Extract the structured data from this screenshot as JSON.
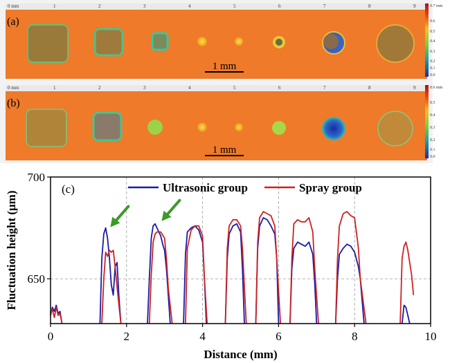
{
  "panel_a": {
    "label": "(a)",
    "scale_bar_label": "1 mm",
    "ruler_labels": [
      "0 mm",
      "1",
      "2",
      "3",
      "4",
      "5",
      "6",
      "7",
      "8",
      "9"
    ],
    "colorbar_labels": [
      "0.7 mm",
      "0.6",
      "0.5",
      "0.4",
      "0.3",
      "0.2",
      "0.1",
      "0.0"
    ]
  },
  "panel_b": {
    "label": "(b)",
    "scale_bar_label": "1 mm",
    "ruler_labels": [
      "0 mm",
      "1",
      "2",
      "3",
      "4",
      "5",
      "6",
      "7",
      "8",
      "9"
    ],
    "colorbar_labels": [
      "0.6 mm",
      "0.5",
      "0.4",
      "0.3",
      "0.2",
      "0.1",
      "0.0"
    ]
  },
  "chart_data": {
    "type": "line",
    "panel_label": "(c)",
    "xlabel": "Distance (mm)",
    "ylabel": "Fluctuation height (μm)",
    "xlim": [
      0,
      10
    ],
    "ylim": [
      628,
      700
    ],
    "xticks": [
      0,
      2,
      4,
      6,
      8,
      10
    ],
    "yticks": [
      650,
      700
    ],
    "grid": "dashed",
    "legend_position": "top",
    "series": [
      {
        "name": "Ultrasonic group",
        "color": "#1a1aa6",
        "segments": [
          [
            [
              0.0,
              632
            ],
            [
              0.05,
              636
            ],
            [
              0.1,
              634
            ],
            [
              0.15,
              637
            ],
            [
              0.2,
              633
            ],
            [
              0.25,
              634
            ],
            [
              0.3,
              628
            ]
          ],
          [
            [
              1.3,
              628
            ],
            [
              1.35,
              660
            ],
            [
              1.4,
              672
            ],
            [
              1.45,
              675
            ],
            [
              1.5,
              670
            ],
            [
              1.55,
              660
            ],
            [
              1.6,
              647
            ],
            [
              1.65,
              642
            ],
            [
              1.7,
              656
            ],
            [
              1.75,
              658
            ],
            [
              1.8,
              641
            ],
            [
              1.85,
              628
            ]
          ],
          [
            [
              2.55,
              628
            ],
            [
              2.6,
              650
            ],
            [
              2.65,
              670
            ],
            [
              2.7,
              676
            ],
            [
              2.75,
              677
            ],
            [
              2.8,
              675
            ],
            [
              2.85,
              673
            ],
            [
              2.9,
              671
            ],
            [
              2.95,
              667
            ],
            [
              3.0,
              664
            ],
            [
              3.05,
              655
            ],
            [
              3.15,
              628
            ]
          ],
          [
            [
              3.5,
              628
            ],
            [
              3.55,
              662
            ],
            [
              3.6,
              673
            ],
            [
              3.7,
              675
            ],
            [
              3.8,
              676
            ],
            [
              3.9,
              674
            ],
            [
              4.0,
              668
            ],
            [
              4.05,
              650
            ],
            [
              4.1,
              628
            ]
          ],
          [
            [
              4.6,
              628
            ],
            [
              4.65,
              660
            ],
            [
              4.7,
              672
            ],
            [
              4.8,
              676
            ],
            [
              4.9,
              677
            ],
            [
              5.0,
              673
            ],
            [
              5.05,
              655
            ],
            [
              5.1,
              628
            ]
          ],
          [
            [
              5.4,
              628
            ],
            [
              5.45,
              665
            ],
            [
              5.5,
              676
            ],
            [
              5.6,
              680
            ],
            [
              5.7,
              679
            ],
            [
              5.8,
              676
            ],
            [
              5.9,
              672
            ],
            [
              5.95,
              660
            ],
            [
              6.0,
              628
            ]
          ],
          [
            [
              6.3,
              628
            ],
            [
              6.35,
              655
            ],
            [
              6.4,
              665
            ],
            [
              6.5,
              668
            ],
            [
              6.6,
              667
            ],
            [
              6.7,
              666
            ],
            [
              6.8,
              668
            ],
            [
              6.9,
              662
            ],
            [
              6.95,
              648
            ],
            [
              7.0,
              628
            ]
          ],
          [
            [
              7.5,
              628
            ],
            [
              7.55,
              650
            ],
            [
              7.6,
              662
            ],
            [
              7.7,
              665
            ],
            [
              7.8,
              667
            ],
            [
              7.9,
              666
            ],
            [
              8.0,
              663
            ],
            [
              8.1,
              656
            ],
            [
              8.15,
              650
            ],
            [
              8.25,
              628
            ]
          ],
          [
            [
              9.25,
              628
            ],
            [
              9.3,
              637
            ],
            [
              9.35,
              636
            ],
            [
              9.4,
              632
            ],
            [
              9.45,
              628
            ]
          ]
        ]
      },
      {
        "name": "Spray group",
        "color": "#cc2222",
        "segments": [
          [
            [
              0.0,
              633
            ],
            [
              0.05,
              635
            ],
            [
              0.1,
              631
            ],
            [
              0.15,
              636
            ],
            [
              0.2,
              632
            ],
            [
              0.25,
              633
            ],
            [
              0.3,
              628
            ]
          ],
          [
            [
              1.35,
              628
            ],
            [
              1.4,
              650
            ],
            [
              1.45,
              663
            ],
            [
              1.5,
              661
            ],
            [
              1.55,
              664
            ],
            [
              1.6,
              663
            ],
            [
              1.65,
              664
            ],
            [
              1.7,
              656
            ],
            [
              1.75,
              646
            ],
            [
              1.85,
              628
            ]
          ],
          [
            [
              2.6,
              628
            ],
            [
              2.65,
              652
            ],
            [
              2.7,
              668
            ],
            [
              2.75,
              672
            ],
            [
              2.8,
              673
            ],
            [
              2.9,
              673
            ],
            [
              3.0,
              670
            ],
            [
              3.05,
              660
            ],
            [
              3.1,
              645
            ],
            [
              3.2,
              628
            ]
          ],
          [
            [
              3.55,
              628
            ],
            [
              3.6,
              665
            ],
            [
              3.7,
              674
            ],
            [
              3.8,
              676
            ],
            [
              3.9,
              676
            ],
            [
              4.0,
              671
            ],
            [
              4.05,
              650
            ],
            [
              4.12,
              628
            ]
          ],
          [
            [
              4.6,
              628
            ],
            [
              4.65,
              665
            ],
            [
              4.7,
              676
            ],
            [
              4.8,
              679
            ],
            [
              4.9,
              679
            ],
            [
              5.0,
              676
            ],
            [
              5.05,
              665
            ],
            [
              5.15,
              628
            ]
          ],
          [
            [
              5.4,
              628
            ],
            [
              5.45,
              668
            ],
            [
              5.5,
              680
            ],
            [
              5.6,
              683
            ],
            [
              5.7,
              682
            ],
            [
              5.8,
              681
            ],
            [
              5.9,
              676
            ],
            [
              5.95,
              660
            ],
            [
              6.05,
              628
            ]
          ],
          [
            [
              6.3,
              628
            ],
            [
              6.35,
              660
            ],
            [
              6.4,
              677
            ],
            [
              6.5,
              679
            ],
            [
              6.6,
              678
            ],
            [
              6.7,
              678
            ],
            [
              6.8,
              680
            ],
            [
              6.9,
              673
            ],
            [
              6.95,
              655
            ],
            [
              7.05,
              628
            ]
          ],
          [
            [
              7.5,
              628
            ],
            [
              7.55,
              660
            ],
            [
              7.6,
              676
            ],
            [
              7.7,
              682
            ],
            [
              7.8,
              683
            ],
            [
              7.9,
              681
            ],
            [
              8.0,
              680
            ],
            [
              8.1,
              665
            ],
            [
              8.15,
              650
            ],
            [
              8.3,
              628
            ]
          ],
          [
            [
              9.2,
              628
            ],
            [
              9.25,
              660
            ],
            [
              9.3,
              666
            ],
            [
              9.35,
              668
            ],
            [
              9.4,
              664
            ],
            [
              9.45,
              658
            ],
            [
              9.5,
              652
            ],
            [
              9.55,
              642
            ]
          ]
        ]
      }
    ],
    "annotations": [
      {
        "type": "arrow",
        "color": "#3a9a2a",
        "points_to": [
          1.5,
          674
        ]
      },
      {
        "type": "arrow",
        "color": "#3a9a2a",
        "points_to": [
          2.85,
          677
        ]
      }
    ]
  }
}
